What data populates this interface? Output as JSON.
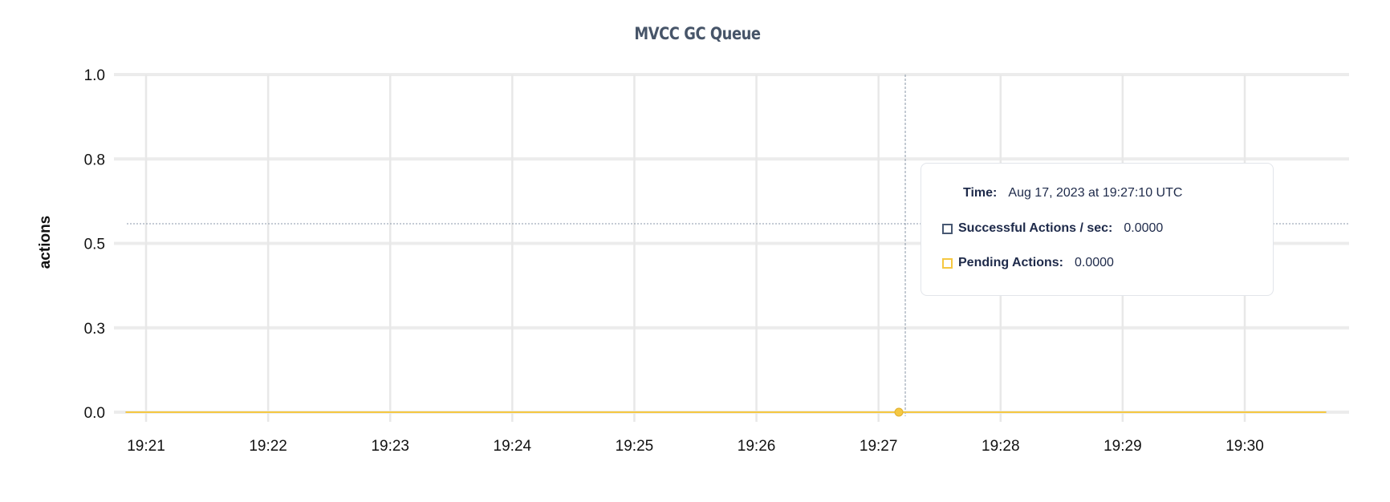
{
  "chart_data": {
    "type": "line",
    "title": "MVCC GC Queue",
    "ylabel": "actions",
    "xlabel": "",
    "ylim": [
      0,
      1
    ],
    "y_ticks": [
      {
        "value": 0,
        "label": "0.0"
      },
      {
        "value": 0.25,
        "label": "0.3"
      },
      {
        "value": 0.5,
        "label": "0.5"
      },
      {
        "value": 0.75,
        "label": "0.8"
      },
      {
        "value": 1,
        "label": "1.0"
      }
    ],
    "x_ticks": [
      "19:21",
      "19:22",
      "19:23",
      "19:24",
      "19:25",
      "19:26",
      "19:27",
      "19:28",
      "19:29",
      "19:30"
    ],
    "x_range": [
      "19:20:50",
      "19:30:40"
    ],
    "grid": true,
    "series": [
      {
        "name": "Successful Actions / sec",
        "color": "#475872",
        "x": [
          "19:20:50",
          "19:30:40"
        ],
        "y": [
          0,
          0
        ]
      },
      {
        "name": "Pending Actions",
        "color": "#f5c842",
        "x": [
          "19:20:50",
          "19:30:40"
        ],
        "y": [
          0,
          0
        ]
      }
    ],
    "hover": {
      "time": "19:27:10",
      "time_label": "Time:",
      "time_value": "Aug 17, 2023 at 19:27:10 UTC",
      "rows": [
        {
          "label": "Successful Actions / sec:",
          "value": "0.0000",
          "color": "#475872"
        },
        {
          "label": "Pending Actions:",
          "value": "0.0000",
          "color": "#f5c842"
        }
      ]
    }
  }
}
